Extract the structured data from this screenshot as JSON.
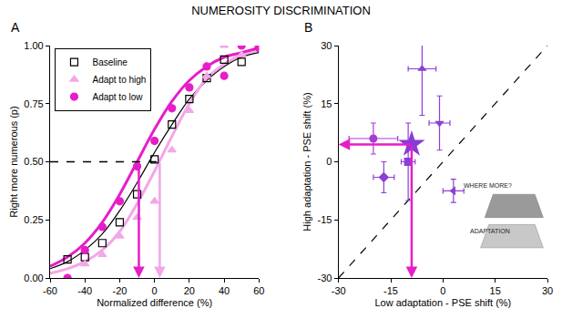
{
  "title": "NUMEROSITY DISCRIMINATION",
  "chart_data": [
    {
      "panel": "A",
      "type": "scatter",
      "x_label": "Normalized difference (%)",
      "y_label": "Right more numerous (p)",
      "xlim": [
        -60,
        60
      ],
      "xticks": [
        -60,
        -40,
        -20,
        0,
        20,
        40,
        60
      ],
      "ylim": [
        0,
        1
      ],
      "yticks": [
        {
          "value": 0,
          "label": "0.00"
        },
        {
          "value": 0.25,
          "label": "0.25"
        },
        {
          "value": 0.5,
          "label": "0.50"
        },
        {
          "value": 0.75,
          "label": "0.75"
        },
        {
          "value": 1,
          "label": "1.00"
        }
      ],
      "legend": "top-left",
      "reference_y": 0.5,
      "x": [
        -50,
        -40,
        -30,
        -20,
        -10,
        0,
        10,
        20,
        30,
        40,
        50,
        60
      ],
      "fit_x": [
        -60,
        -50,
        -40,
        -30,
        -20,
        -10,
        0,
        10,
        20,
        30,
        40,
        50,
        60
      ],
      "series": [
        {
          "name": "Baseline",
          "color": "#000000",
          "marker": "square-open",
          "values": [
            0.08,
            0.09,
            0.15,
            0.24,
            0.36,
            0.51,
            0.66,
            0.77,
            0.86,
            0.94,
            0.93,
            1.0
          ],
          "fit": [
            0.04,
            0.07,
            0.12,
            0.19,
            0.29,
            0.41,
            0.54,
            0.66,
            0.77,
            0.85,
            0.91,
            0.95,
            0.97
          ]
        },
        {
          "name": "Adapt to high",
          "color": "#f4a6e8",
          "marker": "triangle-up",
          "values": [
            0.0,
            0.06,
            0.1,
            0.18,
            0.26,
            0.33,
            0.55,
            0.72,
            0.87,
            1.0,
            0.96,
            1.0
          ],
          "fit": [
            0.02,
            0.04,
            0.07,
            0.12,
            0.2,
            0.32,
            0.46,
            0.61,
            0.75,
            0.86,
            0.92,
            0.96,
            0.98
          ],
          "pse": 3
        },
        {
          "name": "Adapt to low",
          "color": "#e61ec8",
          "marker": "circle",
          "values": [
            0.0,
            0.12,
            0.22,
            0.33,
            0.48,
            0.59,
            0.73,
            0.82,
            0.91,
            0.87,
            1.0,
            0.99
          ],
          "fit": [
            0.05,
            0.09,
            0.15,
            0.24,
            0.36,
            0.5,
            0.64,
            0.76,
            0.85,
            0.91,
            0.95,
            0.97,
            0.99
          ],
          "pse": -9
        }
      ]
    },
    {
      "panel": "B",
      "type": "scatter",
      "x_label": "Low adaptation - PSE shift (%)",
      "y_label": "High adaptation - PSE shift (%)",
      "xlim": [
        -30,
        30
      ],
      "xticks": [
        -30,
        -15,
        0,
        15,
        30
      ],
      "ylim": [
        -30,
        30
      ],
      "yticks": [
        -30,
        -15,
        0,
        15,
        30
      ],
      "points": [
        {
          "marker": "circle",
          "color": "#a63cd2",
          "x": -20,
          "y": 6,
          "x_error": 7,
          "y_error": 4
        },
        {
          "marker": "square",
          "color": "#8c3fd4",
          "x": -10,
          "y": 0,
          "x_error": 2,
          "y_error": 10
        },
        {
          "marker": "diamond",
          "color": "#8c3fd4",
          "x": -17,
          "y": -4,
          "x_error": 3,
          "y_error": 4
        },
        {
          "marker": "triangle-up",
          "color": "#8c3fd4",
          "x": -6,
          "y": 24,
          "x_error": 4,
          "y_error": 12
        },
        {
          "marker": "triangle-down",
          "color": "#8c3fd4",
          "x": -1,
          "y": 10,
          "x_error": 3,
          "y_error": 7
        },
        {
          "marker": "triangle-left",
          "color": "#8c3fd4",
          "x": 3,
          "y": -7.5,
          "x_error": 3,
          "y_error": 3
        }
      ],
      "mean": {
        "marker": "star",
        "color": "#8a3ad6",
        "x": -9,
        "y": 4.5,
        "arrow_color": "#e61ec8"
      },
      "reference_line": {
        "x": [
          -30,
          30
        ],
        "values": [
          -30,
          30
        ],
        "line_style": "dash",
        "color": "#000000"
      },
      "inset": {
        "texts": [
          "WHERE MORE?",
          "ADAPTATION"
        ]
      }
    }
  ]
}
